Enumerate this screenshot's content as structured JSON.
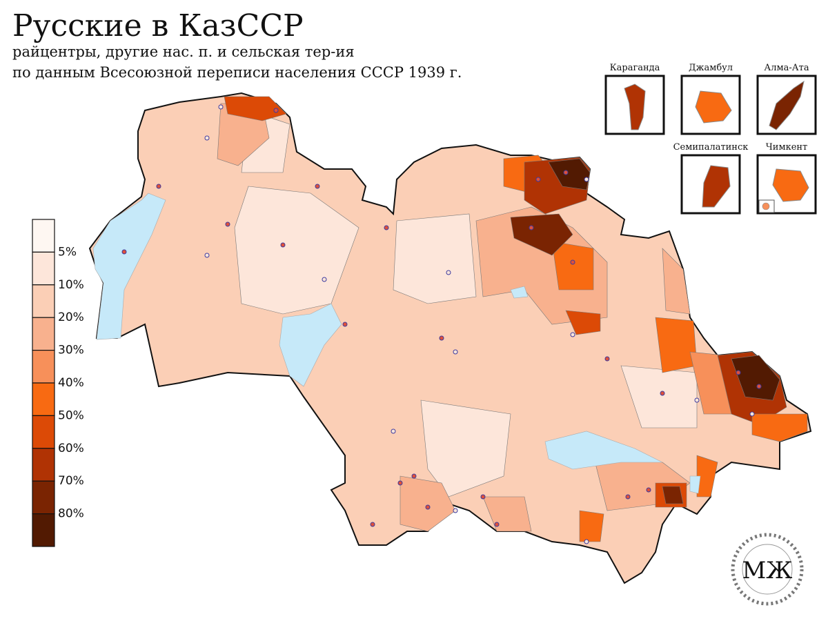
{
  "title": "Русские в КазССР",
  "subtitle": [
    "райцентры, другие нас. п. и сельская тер-ия",
    "по данным Всесоюзной переписи населения СССР 1939 г."
  ],
  "legend": {
    "labels": [
      "5%",
      "10%",
      "20%",
      "30%",
      "40%",
      "50%",
      "60%",
      "70%",
      "80%"
    ],
    "colors": [
      "#fef7f2",
      "#fde6da",
      "#fbcfb6",
      "#f8b18e",
      "#f7905a",
      "#f86a12",
      "#dc4a06",
      "#b03304",
      "#7a2402",
      "#521a02"
    ]
  },
  "insets": [
    {
      "label": "Караганда"
    },
    {
      "label": "Джамбул"
    },
    {
      "label": "Алма-Ата"
    },
    {
      "label": "Семипалатинск"
    },
    {
      "label": "Чимкент"
    }
  ],
  "watermark": "МЖ"
}
